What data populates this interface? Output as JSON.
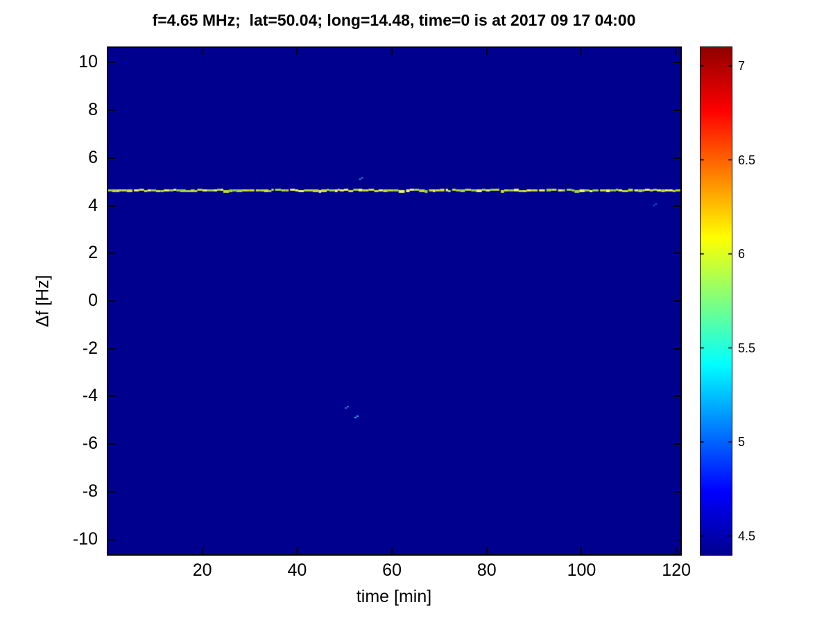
{
  "chart_data": {
    "type": "heatmap",
    "title": "f=4.65 MHz;  lat=50.04; long=14.48, time=0 is at 2017 09 17 04:00",
    "xlabel": "time [min]",
    "ylabel": "Δf [Hz]",
    "xlim": [
      0,
      121
    ],
    "ylim": [
      -10.65,
      10.65
    ],
    "xticks": [
      20,
      40,
      60,
      80,
      100,
      120
    ],
    "yticks": [
      -10,
      -8,
      -6,
      -4,
      -2,
      0,
      2,
      4,
      6,
      8,
      10
    ],
    "grid": false,
    "colormap": "jet",
    "background_value": 4.4,
    "background_color": "#00008f",
    "colorbar": {
      "position": "right",
      "range": [
        4.4,
        7.1
      ],
      "ticks": [
        4.5,
        5,
        5.5,
        6,
        6.5,
        7
      ]
    },
    "features": {
      "horizontal_line": {
        "y": 4.65,
        "x_start": 0,
        "x_end": 121,
        "value": 6.0,
        "description": "narrow textured yellow-green spectral line spanning the full time axis",
        "colors": [
          "#d0dc3a",
          "#9ed24c",
          "#eef066",
          "#bfd732"
        ]
      },
      "specks": [
        {
          "x": 53.5,
          "y": 5.2,
          "value": 5.2,
          "color": "#2f7fd6"
        },
        {
          "x": 50.5,
          "y": -4.4,
          "value": 5.1,
          "color": "#2f7fd6"
        },
        {
          "x": 52.5,
          "y": -4.8,
          "value": 5.3,
          "color": "#3fb0e0"
        },
        {
          "x": 115.5,
          "y": 4.1,
          "value": 4.8,
          "color": "#1a50c8"
        }
      ]
    }
  }
}
